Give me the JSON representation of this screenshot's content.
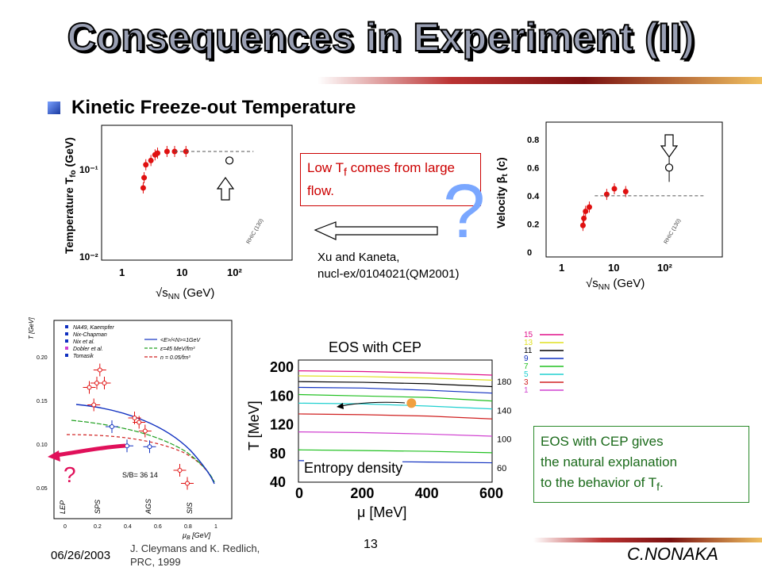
{
  "slide": {
    "title": "Consequences in Experiment  (II)",
    "subtitle": "Kinetic Freeze-out Temperature",
    "note_flow": "Low T",
    "note_flow_sub": "f",
    "note_flow_rest": " comes from large flow.",
    "question_mark": "?",
    "ref_xu_line1": "Xu and Kaneta,",
    "ref_xu_line2": "nucl-ex/0104021(QM2001)",
    "eos_cep_label": "EOS with CEP",
    "entropy_label": "Entropy density",
    "green_note_line1": "EOS with CEP gives",
    "green_note_line2": "the natural explanation",
    "green_note_line3": "to the behavior of T",
    "green_note_sub": "f",
    "green_note_end": ".",
    "date": "06/26/2003",
    "ref_cley_line1": "J. Cleymans and K. Redlich,",
    "ref_cley_line2": "PRC, 1999",
    "page_number": "13",
    "author": "C.NONAKA"
  },
  "colors": {
    "red_marker": "#e01010",
    "arrow_magenta": "#e0105a",
    "question_blue": "#7aa7ff",
    "green_box": "#2a8a2a"
  },
  "chart_data": [
    {
      "type": "scatter",
      "panel": "temperature",
      "ylabel": "Temperature T",
      "ylabel_sub": "fo",
      "ylabel_unit": " (GeV)",
      "xlabel": "√s",
      "xlabel_sub": "NN",
      "xlabel_unit": " (GeV)",
      "x_ticks": [
        "1",
        "10",
        "10²"
      ],
      "y_ticks": [
        "10⁻¹",
        "10⁻²"
      ],
      "log_x": true,
      "rhic_label": "RHIC (130)",
      "points": [
        {
          "x": 2.3,
          "y": 0.055
        },
        {
          "x": 2.4,
          "y": 0.07
        },
        {
          "x": 2.6,
          "y": 0.095
        },
        {
          "x": 3.3,
          "y": 0.105
        },
        {
          "x": 4.0,
          "y": 0.12
        },
        {
          "x": 4.5,
          "y": 0.125
        },
        {
          "x": 7.0,
          "y": 0.13
        },
        {
          "x": 10.0,
          "y": 0.13
        },
        {
          "x": 17.0,
          "y": 0.13
        }
      ],
      "open_point": {
        "x": 130,
        "y": 0.105
      },
      "dashed_level": 0.13
    },
    {
      "type": "scatter",
      "panel": "velocity",
      "ylabel": "Velocity β",
      "ylabel_sub": "t",
      "ylabel_unit": " (c)",
      "xlabel": "√s",
      "xlabel_sub": "NN",
      "xlabel_unit": " (GeV)",
      "x_ticks": [
        "1",
        "10",
        "10²"
      ],
      "y_ticks": [
        "0",
        "0.2",
        "0.4",
        "0.6",
        "0.8"
      ],
      "log_x": true,
      "rhic_label": "RHIC (130)",
      "points": [
        {
          "x": 2.3,
          "y": 0.19
        },
        {
          "x": 2.4,
          "y": 0.24
        },
        {
          "x": 2.6,
          "y": 0.29
        },
        {
          "x": 3.1,
          "y": 0.32
        },
        {
          "x": 7.0,
          "y": 0.41
        },
        {
          "x": 10.0,
          "y": 0.45
        },
        {
          "x": 17.0,
          "y": 0.43
        }
      ],
      "open_point": {
        "x": 130,
        "y": 0.6
      },
      "dashed_level": 0.4
    },
    {
      "type": "scatter",
      "panel": "freeze-out curve",
      "ylabel": "T [GeV]",
      "xlabel": "μ",
      "xlabel_sub": "B",
      "xlabel_unit": " [GeV]",
      "x_ticks": [
        "0",
        "0.2",
        "0.4",
        "0.6",
        "0.8",
        "1"
      ],
      "y_ticks": [
        "0.05",
        "0.10",
        "0.15",
        "0.20"
      ],
      "legend": [
        "NA49, Kaempfer",
        "Nix-Chapman",
        "Nix et al.",
        "Dobler et al.",
        "Tomasik"
      ],
      "curve_labels": [
        "<E>/<N>=1GeV",
        "ε=45 MeV/fm³",
        "n = 0.05/fm³"
      ],
      "region_labels": [
        "LEP",
        "SPS",
        "AGS",
        "SIS"
      ],
      "sb_label": "S/B= 36  14",
      "question_mark": "?",
      "points": [
        {
          "x": 0.15,
          "y": 0.165
        },
        {
          "x": 0.2,
          "y": 0.17
        },
        {
          "x": 0.22,
          "y": 0.185
        },
        {
          "x": 0.25,
          "y": 0.17
        },
        {
          "x": 0.18,
          "y": 0.145
        },
        {
          "x": 0.3,
          "y": 0.12
        },
        {
          "x": 0.4,
          "y": 0.098
        },
        {
          "x": 0.45,
          "y": 0.13
        },
        {
          "x": 0.48,
          "y": 0.125
        },
        {
          "x": 0.52,
          "y": 0.115
        },
        {
          "x": 0.55,
          "y": 0.097
        },
        {
          "x": 0.75,
          "y": 0.07
        },
        {
          "x": 0.8,
          "y": 0.055
        }
      ]
    },
    {
      "type": "line",
      "panel": "EOS contour",
      "ylabel": "T [MeV]",
      "xlabel": "μ [MeV]",
      "x_ticks": [
        "0",
        "200",
        "400",
        "600"
      ],
      "y_ticks": [
        "40",
        "80",
        "120",
        "160",
        "200"
      ],
      "right_labels": [
        "180",
        "140",
        "100",
        "60"
      ],
      "legend": [
        {
          "label": "15",
          "color": "#e0108a"
        },
        {
          "label": "13",
          "color": "#e0e020"
        },
        {
          "label": "11",
          "color": "#000000"
        },
        {
          "label": "9",
          "color": "#1030c0"
        },
        {
          "label": "7",
          "color": "#20c020"
        },
        {
          "label": "5",
          "color": "#20d0d0"
        },
        {
          "label": "3",
          "color": "#d02020"
        },
        {
          "label": "1",
          "color": "#d040d0"
        }
      ],
      "critical_point": {
        "x": 350,
        "y": 150
      },
      "series": [
        {
          "color": "#e0108a",
          "values": [
            195,
            194,
            192,
            189
          ]
        },
        {
          "color": "#e0e020",
          "values": [
            188,
            187,
            185,
            182
          ]
        },
        {
          "color": "#000000",
          "values": [
            180,
            179,
            177,
            173
          ]
        },
        {
          "color": "#1030c0",
          "values": [
            172,
            171,
            168,
            164
          ]
        },
        {
          "color": "#20c020",
          "values": [
            162,
            160,
            158,
            153
          ]
        },
        {
          "color": "#20d0d0",
          "values": [
            150,
            149,
            146,
            142
          ]
        },
        {
          "color": "#d02020",
          "values": [
            135,
            134,
            132,
            128
          ]
        },
        {
          "color": "#d040d0",
          "values": [
            110,
            109,
            107,
            104
          ]
        },
        {
          "color": "#20c020",
          "values": [
            85,
            84,
            83,
            81
          ]
        },
        {
          "color": "#1030c0",
          "values": [
            70,
            69,
            68,
            67
          ]
        }
      ],
      "x": [
        0,
        200,
        400,
        600
      ]
    }
  ]
}
